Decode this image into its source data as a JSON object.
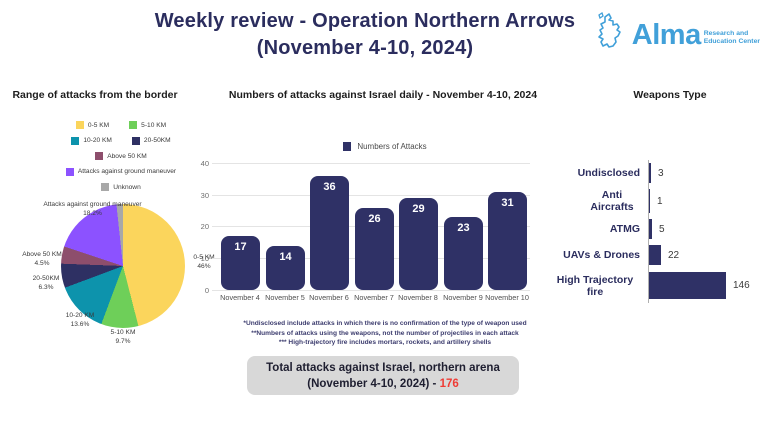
{
  "header": {
    "title_line1": "Weekly review - Operation Northern Arrows",
    "title_line2": "(November 4-10, 2024)",
    "logo": {
      "name": "Alma",
      "tagline_line1": "Research and",
      "tagline_line2": "Education Center",
      "brand_color": "#41a0d9"
    }
  },
  "pie_labels": [
    {
      "name": "0-5 KM",
      "pct": "46%"
    },
    {
      "name": "5-10 KM",
      "pct": "9.7%"
    },
    {
      "name": "10-20 KM",
      "pct": "13.6%"
    },
    {
      "name": "20-50KM",
      "pct": "6.3%"
    },
    {
      "name": "Above 50 KM",
      "pct": "4.5%"
    },
    {
      "name": "Attacks against ground maneuver",
      "pct": "18.2%"
    }
  ],
  "chart_data": [
    {
      "type": "pie",
      "title": "Range of attacks from the border",
      "categories": [
        "0-5 KM",
        "5-10 KM",
        "10-20 KM",
        "20-50KM",
        "Above 50 KM",
        "Attacks against ground maneuver",
        "Unknown"
      ],
      "values": [
        46,
        9.7,
        13.6,
        6.3,
        4.5,
        18.2,
        1.7
      ],
      "unit": "percent",
      "colors": [
        "#fbd55c",
        "#6ecf59",
        "#0d93ac",
        "#2e3063",
        "#8d4e6c",
        "#8c52ff",
        "#a8a8a8"
      ],
      "legend_position": "top",
      "notes": "Unknown slice unlabeled on chart; value estimated as remainder"
    },
    {
      "type": "bar",
      "title": "Numbers of attacks against Israel daily - November 4-10, 2024",
      "legend": "Numbers of Attacks",
      "categories": [
        "November 4",
        "November 5",
        "November 6",
        "November 7",
        "November 8",
        "November 9",
        "November 10"
      ],
      "values": [
        17,
        14,
        36,
        26,
        29,
        23,
        31
      ],
      "ylim": [
        0,
        40
      ],
      "yticks": [
        40,
        30,
        20,
        10,
        0
      ],
      "grid": true,
      "bar_color": "#2f3166"
    },
    {
      "type": "bar-horizontal",
      "title": "Weapons Type",
      "categories": [
        "Undisclosed",
        "Anti Aircrafts",
        "ATMG",
        "UAVs & Drones",
        "High Trajectory fire"
      ],
      "values": [
        3,
        1,
        5,
        22,
        146
      ],
      "xlim": [
        0,
        146
      ],
      "bar_color": "#2f3166"
    }
  ],
  "footnotes": [
    "*Undisclosed include attacks in which  there is no confirmation of the type of weapon used",
    "**Numbers of attacks using the weapons, not the number of projectiles in each attack",
    "*** High-trajectory fire includes mortars, rockets, and artillery shells"
  ],
  "total_box": {
    "line1": "Total attacks against Israel, northern arena",
    "line2_prefix": "(November 4-10, 2024) - ",
    "total": "176",
    "total_color": "#ef3b35"
  }
}
